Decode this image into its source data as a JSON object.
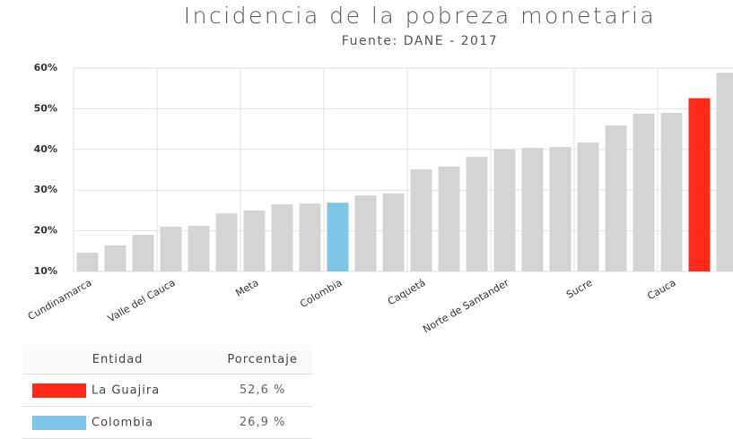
{
  "chart_data": {
    "type": "bar",
    "title": "Incidencia de la pobreza monetaria",
    "subtitle": "Fuente: DANE - 2017",
    "categories": [
      "Cundinamarca",
      null,
      null,
      "Valle del Cauca",
      null,
      null,
      "Meta",
      null,
      null,
      "Colombia",
      null,
      null,
      "Caquetá",
      null,
      null,
      "Norte de Santander",
      null,
      null,
      "Sucre",
      null,
      null,
      "Cauca",
      null,
      null
    ],
    "values": [
      14.6,
      16.4,
      19.0,
      21.0,
      21.2,
      24.3,
      25.0,
      26.5,
      26.7,
      26.9,
      28.7,
      29.2,
      35.1,
      35.8,
      38.2,
      40.0,
      40.4,
      40.6,
      41.7,
      45.9,
      48.8,
      49.0,
      52.6,
      58.9
    ],
    "colors": [
      "#d4d4d4",
      "#d4d4d4",
      "#d4d4d4",
      "#d4d4d4",
      "#d4d4d4",
      "#d4d4d4",
      "#d4d4d4",
      "#d4d4d4",
      "#d4d4d4",
      "#7fc5e8",
      "#d4d4d4",
      "#d4d4d4",
      "#d4d4d4",
      "#d4d4d4",
      "#d4d4d4",
      "#d4d4d4",
      "#d4d4d4",
      "#d4d4d4",
      "#d4d4d4",
      "#d4d4d4",
      "#d4d4d4",
      "#d4d4d4",
      "#ff2a1a",
      "#d4d4d4"
    ],
    "ylim": [
      10,
      60
    ],
    "yticks": [
      {
        "value": 10,
        "label": "10%"
      },
      {
        "value": 20,
        "label": "20%"
      },
      {
        "value": 30,
        "label": "30%"
      },
      {
        "value": 40,
        "label": "40%"
      },
      {
        "value": 50,
        "label": "50%"
      },
      {
        "value": 60,
        "label": "60%"
      }
    ],
    "grid": true
  },
  "table": {
    "header": [
      "Entidad",
      "Porcentaje"
    ],
    "rows": [
      [
        "La Guajira",
        "52,6 %"
      ],
      [
        "Colombia",
        "26,9 %"
      ]
    ]
  }
}
